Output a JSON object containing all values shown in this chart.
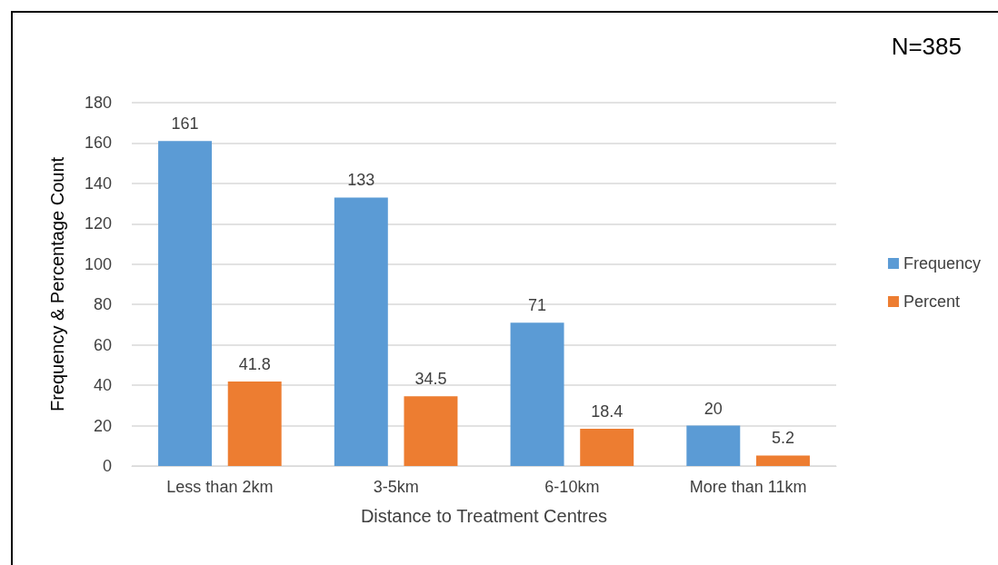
{
  "chart_data": {
    "type": "bar",
    "xlabel": "Distance to Treatment Centres",
    "ylabel": "Frequency & Percentage Count",
    "categories": [
      "Less than 2km",
      "3-5km",
      "6-10km",
      "More than 11km"
    ],
    "series": [
      {
        "name": "Frequency",
        "color": "#5b9bd5",
        "values": [
          161,
          133,
          71,
          20
        ]
      },
      {
        "name": "Percent",
        "color": "#ed7d31",
        "values": [
          41.8,
          34.5,
          18.4,
          5.2
        ]
      }
    ],
    "ylim": [
      0,
      180
    ],
    "yticks": [
      0,
      20,
      40,
      60,
      80,
      100,
      120,
      140,
      160,
      180
    ],
    "grid": "y",
    "legend": "right",
    "data_labels": true,
    "annotations": [
      "N=385"
    ]
  }
}
